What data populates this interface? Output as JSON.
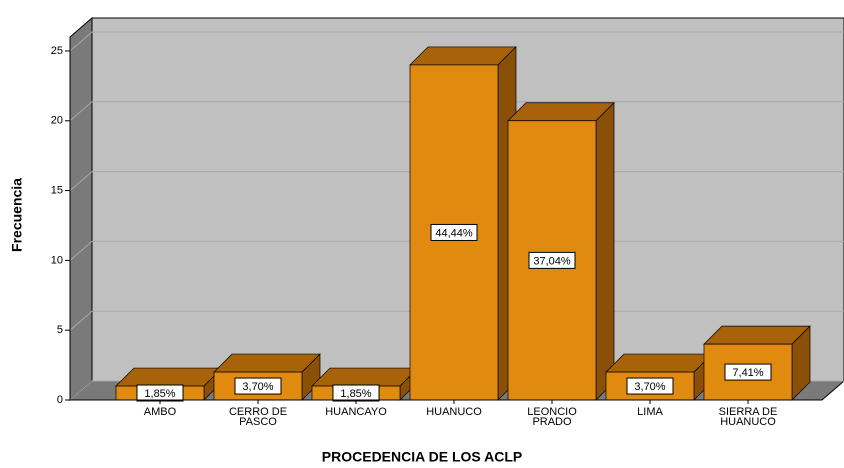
{
  "chart_data": {
    "type": "bar3d",
    "xlabel": "PROCEDENCIA DE LOS ACLP",
    "ylabel": "Frecuencia",
    "categories": [
      "AMBO",
      "CERRO DE PASCO",
      "HUANCAYO",
      "HUANUCO",
      "LEONCIO PRADO",
      "LIMA",
      "SIERRA DE HUANUCO"
    ],
    "values": [
      1,
      2,
      1,
      24,
      20,
      2,
      4
    ],
    "percentages": [
      1.85,
      3.7,
      1.85,
      44.44,
      37.04,
      3.7,
      7.41
    ],
    "percentage_labels": [
      "1,85%",
      "3,70%",
      "1,85%",
      "44,44%",
      "37,04%",
      "3,70%",
      "7,41%"
    ],
    "color": "#e08a10",
    "ylim": [
      0,
      26
    ],
    "yticks": [
      0,
      5,
      10,
      15,
      20,
      25
    ],
    "grid": true
  }
}
